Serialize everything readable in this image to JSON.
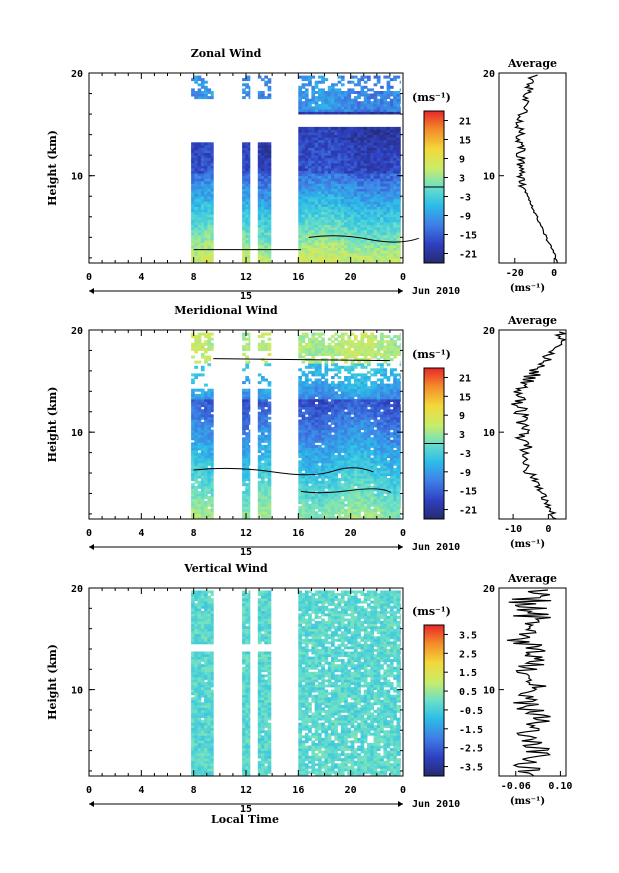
{
  "figure": {
    "xlabel": "Local Time",
    "month_label": "Jun 2010",
    "day_label": "15"
  },
  "chart_data": [
    {
      "type": "heatmap",
      "title": "Zonal Wind",
      "xlabel": "",
      "ylabel": "Height (km)",
      "xticks": [
        "0",
        "4",
        "8",
        "12",
        "16",
        "20",
        "0"
      ],
      "xlim": [
        0,
        24
      ],
      "yticks": [
        "20",
        "10"
      ],
      "ylim": [
        1.5,
        20
      ],
      "colorbar": {
        "unit": "(ms⁻¹)",
        "ticks": [
          "21",
          "15",
          "9",
          "3",
          "-3",
          "-9",
          "-15",
          "-21"
        ],
        "range": [
          -24,
          24
        ]
      },
      "data_blocks_hours": [
        [
          7.8,
          9.5
        ],
        [
          11.7,
          12.3
        ],
        [
          12.9,
          13.9
        ],
        [
          16.0,
          23.8
        ]
      ],
      "average_profile": {
        "title": "Average",
        "xlabel": "(ms⁻¹)",
        "xticks": [
          "-20",
          "0"
        ],
        "xlim": [
          -28,
          6
        ]
      }
    },
    {
      "type": "heatmap",
      "title": "Meridional Wind",
      "xlabel": "",
      "ylabel": "Height (km)",
      "xticks": [
        "0",
        "4",
        "8",
        "12",
        "16",
        "20",
        "0"
      ],
      "xlim": [
        0,
        24
      ],
      "yticks": [
        "20",
        "10"
      ],
      "ylim": [
        1.5,
        20
      ],
      "colorbar": {
        "unit": "(ms⁻¹)",
        "ticks": [
          "21",
          "15",
          "9",
          "3",
          "-3",
          "-9",
          "-15",
          "-21"
        ],
        "range": [
          -24,
          24
        ]
      },
      "data_blocks_hours": [
        [
          7.8,
          9.5
        ],
        [
          11.7,
          12.3
        ],
        [
          12.9,
          13.9
        ],
        [
          16.0,
          23.8
        ]
      ],
      "average_profile": {
        "title": "Average",
        "xlabel": "(ms⁻¹)",
        "xticks": [
          "-10",
          "0"
        ],
        "xlim": [
          -14,
          5
        ]
      }
    },
    {
      "type": "heatmap",
      "title": "Vertical Wind",
      "xlabel": "Local Time",
      "ylabel": "Height (km)",
      "xticks": [
        "0",
        "4",
        "8",
        "12",
        "16",
        "20",
        "0"
      ],
      "xlim": [
        0,
        24
      ],
      "yticks": [
        "20",
        "10"
      ],
      "ylim": [
        1.5,
        20
      ],
      "colorbar": {
        "unit": "(ms⁻¹)",
        "ticks": [
          "3.5",
          "2.5",
          "1.5",
          "0.5",
          "-0.5",
          "-1.5",
          "-2.5",
          "-3.5"
        ],
        "range": [
          -4,
          4
        ]
      },
      "data_blocks_hours": [
        [
          7.8,
          9.5
        ],
        [
          11.7,
          12.3
        ],
        [
          12.9,
          13.9
        ],
        [
          16.0,
          23.8
        ]
      ],
      "average_profile": {
        "title": "Average",
        "xlabel": "(ms⁻¹)",
        "xticks": [
          "-0.06",
          "0.10"
        ],
        "xlim": [
          -0.12,
          0.12
        ]
      }
    }
  ]
}
